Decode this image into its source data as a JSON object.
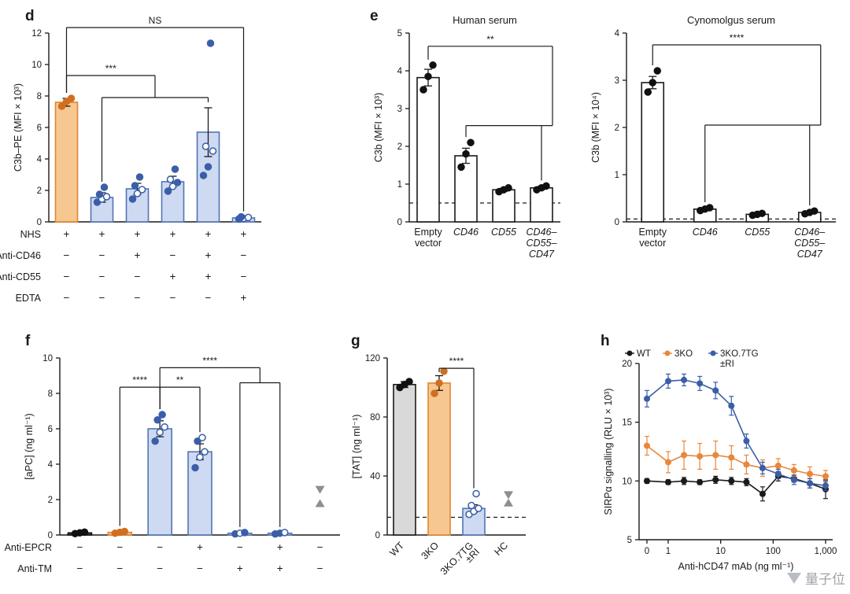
{
  "watermark": {
    "text": "量子位"
  },
  "styles": {
    "orange": {
      "fill": "#F7C792",
      "stroke": "#E0862F",
      "point": "#D06F1F"
    },
    "blue": {
      "fill": "#CEDAF2",
      "stroke": "#5474B4",
      "point": "#3A5EA8"
    },
    "white": {
      "fill": "#FFFFFF",
      "stroke": "#1A1A1A",
      "point": "#111111"
    },
    "gray": {
      "fill": "#D9D9D9",
      "stroke": "#1A1A1A",
      "point": "#111111"
    },
    "dark": {
      "fill": "#454545",
      "stroke": "#111111",
      "point": "#111111"
    },
    "none": {
      "fill": "none",
      "stroke": "none",
      "point": "#8E8E8E"
    },
    "series_colors": {
      "black": "#1A1A1A",
      "orange": "#E8873A",
      "blue": "#3A5EA8"
    }
  },
  "chart_data": [
    {
      "id": "d",
      "panel": "d",
      "type": "bar",
      "ylabel": "C3b–PE (MFI × 10³)",
      "ylim": [
        0,
        12
      ],
      "yticks": [
        0,
        2,
        4,
        6,
        8,
        10,
        12
      ],
      "bars": [
        {
          "style": "orange",
          "value": 7.6,
          "err": 0.25,
          "pts": [
            [
              7.35,
              1
            ],
            [
              7.65,
              1
            ],
            [
              7.85,
              1
            ]
          ]
        },
        {
          "style": "blue",
          "value": 1.55,
          "err": 0.3,
          "pts": [
            [
              1.25,
              1
            ],
            [
              1.45,
              0
            ],
            [
              1.6,
              0
            ],
            [
              1.75,
              1
            ],
            [
              2.2,
              1
            ]
          ]
        },
        {
          "style": "blue",
          "value": 2.1,
          "err": 0.35,
          "pts": [
            [
              1.45,
              1
            ],
            [
              1.8,
              0
            ],
            [
              2.05,
              0
            ],
            [
              2.3,
              1
            ],
            [
              2.85,
              1
            ]
          ]
        },
        {
          "style": "blue",
          "value": 2.55,
          "err": 0.35,
          "pts": [
            [
              1.95,
              1
            ],
            [
              2.25,
              0
            ],
            [
              2.5,
              1
            ],
            [
              2.7,
              0
            ],
            [
              3.35,
              1
            ]
          ]
        },
        {
          "style": "blue",
          "value": 5.7,
          "err": 1.55,
          "pts": [
            [
              2.95,
              1
            ],
            [
              3.5,
              1
            ],
            [
              4.5,
              0
            ],
            [
              4.8,
              0
            ],
            [
              11.35,
              1
            ]
          ]
        },
        {
          "style": "blue",
          "value": 0.25,
          "err": 0.06,
          "pts": [
            [
              0.18,
              1
            ],
            [
              0.22,
              0
            ],
            [
              0.28,
              0
            ],
            [
              0.32,
              1
            ]
          ]
        }
      ],
      "brackets": [
        {
          "kind": "span",
          "a": 0,
          "b": 5,
          "y": 12.35,
          "label": "NS"
        },
        {
          "kind": "group",
          "a": 0,
          "g1": 1,
          "g2": 4,
          "y1": 9.3,
          "y2": 7.9,
          "label": "***",
          "conn": "center"
        }
      ],
      "xrows": [
        {
          "label": "NHS",
          "values": [
            "+",
            "+",
            "+",
            "+",
            "+",
            "+"
          ]
        },
        {
          "label": "Anti-CD46",
          "values": [
            "−",
            "−",
            "+",
            "−",
            "+",
            "−"
          ]
        },
        {
          "label": "Anti-CD55",
          "values": [
            "−",
            "−",
            "−",
            "+",
            "+",
            "−"
          ]
        },
        {
          "label": "EDTA",
          "values": [
            "−",
            "−",
            "−",
            "−",
            "−",
            "+"
          ]
        }
      ]
    },
    {
      "id": "e1",
      "panel": "e",
      "type": "bar",
      "title": "Human serum",
      "ylabel": "C3b (MFI × 10³)",
      "ylim": [
        0,
        5
      ],
      "yticks": [
        0,
        1,
        2,
        3,
        4,
        5
      ],
      "dash": 0.5,
      "bars": [
        {
          "style": "white",
          "value": 3.82,
          "err": 0.22,
          "pts": [
            [
              3.5,
              1
            ],
            [
              3.85,
              1
            ],
            [
              4.15,
              1
            ]
          ]
        },
        {
          "style": "white",
          "value": 1.75,
          "err": 0.2,
          "pts": [
            [
              1.45,
              1
            ],
            [
              1.8,
              1
            ],
            [
              2.1,
              1
            ]
          ]
        },
        {
          "style": "white",
          "value": 0.85,
          "err": 0.04,
          "pts": [
            [
              0.8,
              1
            ],
            [
              0.85,
              1
            ],
            [
              0.9,
              1
            ]
          ]
        },
        {
          "style": "white",
          "value": 0.9,
          "err": 0.04,
          "pts": [
            [
              0.85,
              1
            ],
            [
              0.9,
              1
            ],
            [
              0.95,
              1
            ]
          ]
        }
      ],
      "brackets": [
        {
          "kind": "group",
          "a": 0,
          "g1": 1,
          "g2": 3,
          "y1": 4.65,
          "y2": 2.55,
          "label": "**",
          "conn": "right"
        }
      ],
      "xlabels": [
        {
          "lines": [
            "Empty",
            "vector"
          ],
          "italic": false
        },
        {
          "lines": [
            "CD46"
          ],
          "italic": true
        },
        {
          "lines": [
            "CD55"
          ],
          "italic": true
        },
        {
          "lines": [
            "CD46–",
            "CD55–",
            "CD47"
          ],
          "italic": true
        }
      ]
    },
    {
      "id": "e2",
      "panel": "",
      "type": "bar",
      "title": "Cynomolgus serum",
      "ylabel": "C3b (MFI × 10⁴)",
      "ylim": [
        0,
        4
      ],
      "yticks": [
        0,
        1,
        2,
        3,
        4
      ],
      "dash": 0.06,
      "bars": [
        {
          "style": "white",
          "value": 2.95,
          "err": 0.13,
          "pts": [
            [
              2.75,
              1
            ],
            [
              2.95,
              1
            ],
            [
              3.2,
              1
            ]
          ]
        },
        {
          "style": "white",
          "value": 0.27,
          "err": 0.03,
          "pts": [
            [
              0.24,
              1
            ],
            [
              0.27,
              1
            ],
            [
              0.3,
              1
            ]
          ]
        },
        {
          "style": "white",
          "value": 0.16,
          "err": 0.02,
          "pts": [
            [
              0.14,
              1
            ],
            [
              0.16,
              1
            ],
            [
              0.18,
              1
            ]
          ]
        },
        {
          "style": "white",
          "value": 0.2,
          "err": 0.03,
          "pts": [
            [
              0.17,
              1
            ],
            [
              0.2,
              1
            ],
            [
              0.23,
              1
            ]
          ]
        }
      ],
      "brackets": [
        {
          "kind": "group",
          "a": 0,
          "g1": 1,
          "g2": 3,
          "y1": 3.75,
          "y2": 2.05,
          "label": "****",
          "conn": "right"
        }
      ],
      "xlabels": [
        {
          "lines": [
            "Empty",
            "vector"
          ],
          "italic": false
        },
        {
          "lines": [
            "CD46"
          ],
          "italic": true
        },
        {
          "lines": [
            "CD55"
          ],
          "italic": true
        },
        {
          "lines": [
            "CD46–",
            "CD55–",
            "CD47"
          ],
          "italic": true
        }
      ]
    },
    {
      "id": "f",
      "panel": "f",
      "type": "bar",
      "ylabel": "[aPC] (ng ml⁻¹)",
      "ylim": [
        0,
        10
      ],
      "yticks": [
        0,
        2,
        4,
        6,
        8,
        10
      ],
      "bars": [
        {
          "style": "dark",
          "value": 0.12,
          "err": 0.04,
          "pts": [
            [
              0.08,
              1
            ],
            [
              0.12,
              1
            ],
            [
              0.16,
              1
            ]
          ]
        },
        {
          "style": "orange",
          "value": 0.15,
          "err": 0.04,
          "pts": [
            [
              0.1,
              1
            ],
            [
              0.15,
              1
            ],
            [
              0.2,
              1
            ]
          ]
        },
        {
          "style": "blue",
          "value": 6.0,
          "err": 0.45,
          "pts": [
            [
              5.3,
              1
            ],
            [
              5.8,
              0
            ],
            [
              6.1,
              0
            ],
            [
              6.5,
              1
            ],
            [
              6.8,
              1
            ]
          ]
        },
        {
          "style": "blue",
          "value": 4.7,
          "err": 0.45,
          "pts": [
            [
              3.8,
              1
            ],
            [
              4.4,
              0
            ],
            [
              4.7,
              0
            ],
            [
              5.3,
              1
            ],
            [
              5.5,
              0
            ]
          ]
        },
        {
          "style": "blue",
          "value": 0.1,
          "err": 0.04,
          "pts": [
            [
              0.06,
              1
            ],
            [
              0.1,
              0
            ],
            [
              0.14,
              1
            ]
          ]
        },
        {
          "style": "blue",
          "value": 0.1,
          "err": 0.04,
          "pts": [
            [
              0.06,
              1
            ],
            [
              0.1,
              1
            ],
            [
              0.14,
              0
            ]
          ]
        },
        {
          "style": "none",
          "value": null,
          "tri": [
            2.55,
            1.8
          ]
        }
      ],
      "brackets": [
        {
          "kind": "span",
          "a": 1,
          "b": 2,
          "y": 8.35,
          "label": "****"
        },
        {
          "kind": "span",
          "a": 2,
          "b": 3,
          "y": 8.35,
          "label": "**"
        },
        {
          "kind": "group",
          "a": 2,
          "g1": 4,
          "g2": 5,
          "y1": 9.45,
          "y2": 8.6,
          "label": "****",
          "conn": "center"
        }
      ],
      "xrows": [
        {
          "label": "Anti-EPCR",
          "values": [
            "−",
            "−",
            "−",
            "+",
            "−",
            "+",
            "−"
          ]
        },
        {
          "label": "Anti-TM",
          "values": [
            "−",
            "−",
            "−",
            "−",
            "+",
            "+",
            "−"
          ]
        }
      ]
    },
    {
      "id": "g",
      "panel": "g",
      "type": "bar",
      "ylabel": "[TAT] (ng ml⁻¹)",
      "ylim": [
        0,
        120
      ],
      "yticks": [
        0,
        40,
        80,
        120
      ],
      "dash": 12,
      "bars": [
        {
          "style": "gray",
          "value": 102,
          "err": 2,
          "pts": [
            [
              100,
              1
            ],
            [
              102,
              1
            ],
            [
              104,
              1
            ]
          ]
        },
        {
          "style": "orange",
          "value": 103,
          "err": 5,
          "pts": [
            [
              96,
              1
            ],
            [
              103,
              1
            ],
            [
              111,
              1
            ]
          ]
        },
        {
          "style": "blue",
          "value": 18,
          "err": 2.5,
          "pts": [
            [
              14,
              0
            ],
            [
              16,
              0
            ],
            [
              18,
              0
            ],
            [
              20,
              0
            ],
            [
              28,
              0
            ]
          ]
        },
        {
          "style": "none",
          "value": null,
          "tri": [
            27,
            22
          ]
        }
      ],
      "brackets": [
        {
          "kind": "span",
          "a": 1,
          "b": 2,
          "y": 113,
          "label": "****"
        }
      ],
      "rotlabels": [
        [
          "WT"
        ],
        [
          "3KO"
        ],
        [
          "3KO.7TG",
          "±RI"
        ],
        [
          "HC"
        ]
      ]
    },
    {
      "id": "h",
      "panel": "h",
      "type": "line",
      "ylabel": "SIRPα signalling (RLU × 10³)",
      "xlabel": "Anti-hCD47 mAb (ng ml⁻¹)",
      "ylim": [
        5,
        20
      ],
      "yticks": [
        5,
        10,
        15,
        20
      ],
      "xticks": [
        0,
        1,
        10,
        100,
        1000
      ],
      "xtick_labels": [
        "0",
        "1",
        "10",
        "100",
        "1,000"
      ],
      "x": [
        0,
        1,
        2,
        4,
        8,
        16,
        31,
        63,
        125,
        250,
        500,
        1000
      ],
      "series": [
        {
          "name": "WT",
          "legend_lines": [
            "WT"
          ],
          "color": "black",
          "values": [
            10.0,
            9.9,
            10.0,
            9.9,
            10.1,
            10.0,
            9.9,
            8.9,
            10.4,
            10.2,
            9.8,
            9.3
          ],
          "err": [
            0.2,
            0.2,
            0.3,
            0.2,
            0.3,
            0.3,
            0.3,
            0.6,
            0.4,
            0.3,
            0.4,
            0.8
          ]
        },
        {
          "name": "3KO",
          "legend_lines": [
            "3KO"
          ],
          "color": "orange",
          "values": [
            13.0,
            11.6,
            12.2,
            12.1,
            12.2,
            12.0,
            11.4,
            11.1,
            11.3,
            10.9,
            10.6,
            10.4
          ],
          "err": [
            0.8,
            0.9,
            1.2,
            1.1,
            1.2,
            1.0,
            0.8,
            0.7,
            0.6,
            0.5,
            0.6,
            0.5
          ]
        },
        {
          "name": "3KO.7TG ±RI",
          "legend_lines": [
            "3KO.7TG",
            "±RI"
          ],
          "color": "blue",
          "values": [
            17.0,
            18.5,
            18.6,
            18.3,
            17.7,
            16.4,
            13.4,
            11.1,
            10.6,
            10.1,
            9.8,
            9.6
          ],
          "err": [
            0.7,
            0.6,
            0.5,
            0.6,
            0.7,
            0.8,
            0.6,
            0.5,
            0.4,
            0.4,
            0.4,
            0.4
          ]
        }
      ]
    }
  ]
}
